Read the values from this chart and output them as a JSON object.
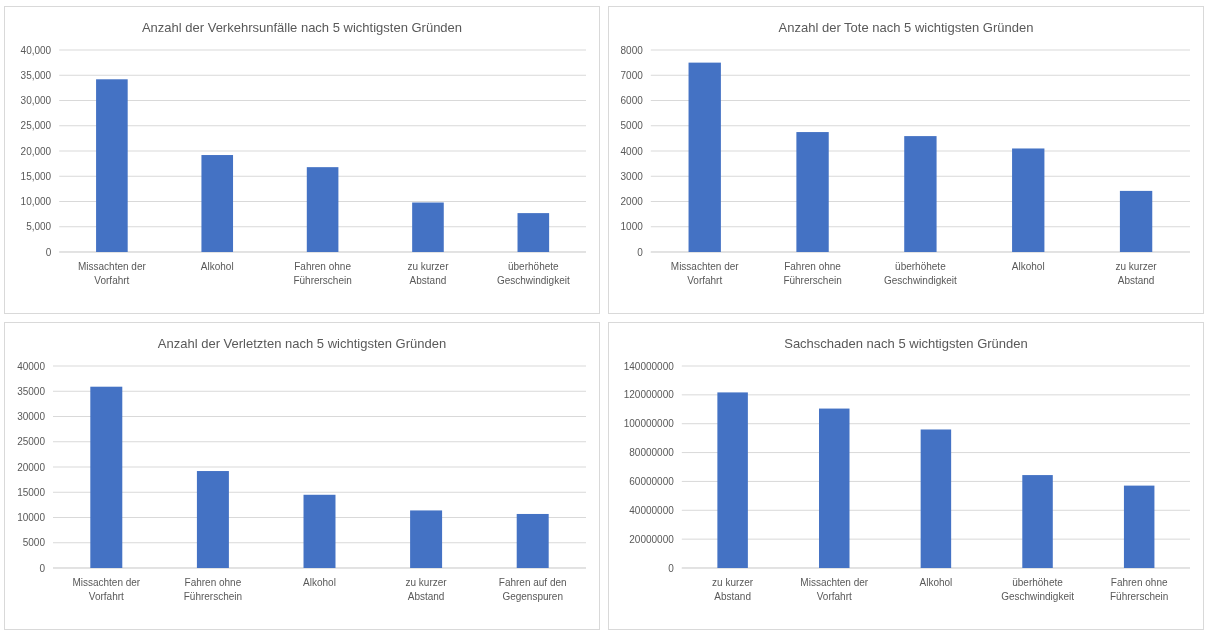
{
  "chart_data": [
    {
      "type": "bar",
      "title": "Anzahl der Verkehrsunfälle nach 5 wichtigsten Gründen",
      "categories": [
        "Missachten der Vorfahrt",
        "Alkohol",
        "Fahren ohne Führerschein",
        "zu kurzer Abstand",
        "überhöhete Geschwindigkeit"
      ],
      "values": [
        34200,
        19200,
        16800,
        9800,
        7700
      ],
      "color": "#4472c4",
      "ylim": [
        0,
        40000
      ],
      "yticks": [
        {
          "value": 0,
          "label": "0"
        },
        {
          "value": 5000,
          "label": "5,000"
        },
        {
          "value": 10000,
          "label": "10,000"
        },
        {
          "value": 15000,
          "label": "15,000"
        },
        {
          "value": 20000,
          "label": "20,000"
        },
        {
          "value": 25000,
          "label": "25,000"
        },
        {
          "value": 30000,
          "label": "30,000"
        },
        {
          "value": 35000,
          "label": "35,000"
        },
        {
          "value": 40000,
          "label": "40,000"
        }
      ],
      "grid": "y"
    },
    {
      "type": "bar",
      "title": "Anzahl der Tote nach 5  wichtigsten Gründen",
      "categories": [
        "Missachten der Vorfahrt",
        "Fahren ohne Führerschein",
        "überhöhete Geschwindigkeit",
        "Alkohol",
        "zu kurzer Abstand"
      ],
      "values": [
        7500,
        4750,
        4590,
        4100,
        2420
      ],
      "color": "#4472c4",
      "ylim": [
        0,
        8000
      ],
      "yticks": [
        0,
        1000,
        2000,
        3000,
        4000,
        5000,
        6000,
        7000,
        8000
      ],
      "grid": "y"
    },
    {
      "type": "bar",
      "title": "Anzahl der Verletzten nach 5  wichtigsten Gründen",
      "categories": [
        "Missachten der Vorfahrt",
        "Fahren ohne Führerschein",
        "Alkohol",
        "zu kurzer Abstand",
        "Fahren auf den Gegenspuren"
      ],
      "values": [
        35900,
        19200,
        14500,
        11400,
        10700
      ],
      "color": "#4472c4",
      "ylim": [
        0,
        40000
      ],
      "yticks": [
        0,
        5000,
        10000,
        15000,
        20000,
        25000,
        30000,
        35000,
        40000
      ],
      "grid": "y"
    },
    {
      "type": "bar",
      "title": "Sachschaden nach 5  wichtigsten Gründen",
      "categories": [
        "zu kurzer Abstand",
        "Missachten der Vorfahrt",
        "Alkohol",
        "überhöhete Geschwindigkeit",
        "Fahren ohne Führerschein"
      ],
      "values": [
        121700000,
        110500000,
        96000000,
        64400000,
        57100000
      ],
      "color": "#4472c4",
      "ylim": [
        0,
        140000000
      ],
      "yticks": [
        0,
        20000000,
        40000000,
        60000000,
        80000000,
        100000000,
        120000000,
        140000000
      ],
      "grid": "y"
    }
  ]
}
